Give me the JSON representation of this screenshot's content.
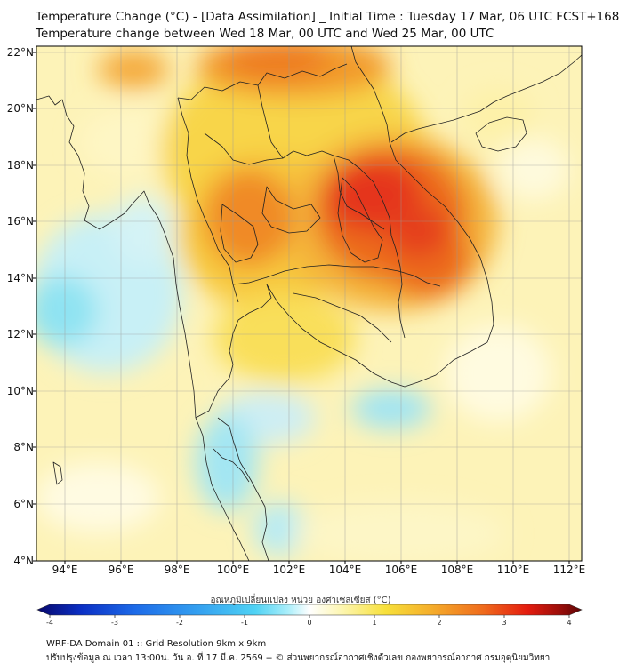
{
  "header": {
    "title": "Temperature Change (°C) - [Data Assimilation] _ Initial Time : Tuesday 17 Mar, 06 UTC FCST+168",
    "subtitle": "Temperature change between Wed 18 Mar, 00 UTC and Wed 25 Mar, 00 UTC"
  },
  "map": {
    "lon_labels": [
      "94°E",
      "96°E",
      "98°E",
      "100°E",
      "102°E",
      "104°E",
      "106°E",
      "108°E",
      "110°E",
      "112°E"
    ],
    "lat_labels": [
      "22°N",
      "20°N",
      "18°N",
      "16°N",
      "14°N",
      "12°N",
      "10°N",
      "8°N",
      "6°N",
      "4°N"
    ],
    "lon_range": [
      93,
      112.5
    ],
    "lat_range": [
      4,
      22.2
    ]
  },
  "colorbar": {
    "title": "อุณหภูมิเปลี่ยนแปลง หน่วย องศาเซลเซียส (°C)",
    "ticks": [
      "-4",
      "-3",
      "-2",
      "-1",
      "0",
      "1",
      "2",
      "3",
      "4"
    ],
    "range": [
      -4,
      4
    ],
    "colors": [
      "#08076b",
      "#0b2fc4",
      "#1d6be8",
      "#35a2f0",
      "#4fd2f4",
      "#a9eefa",
      "#ffffff",
      "#fdf6b0",
      "#f7e03a",
      "#f5b02c",
      "#ef6a1c",
      "#e41c0f",
      "#9b0e0a",
      "#5c0505"
    ]
  },
  "footer": {
    "line1": "WRF-DA Domain 01 :: Grid Resolution 9km x 9km",
    "line2": "ปรับปรุงข้อมูล ณ เวลา 13:00น. วัน อ. ที่ 17 มี.ค. 2569 -- © ส่วนพยากรณ์อากาศเชิงตัวเลข กองพยากรณ์อากาศ กรมอุตุนิยมวิทยา"
  }
}
